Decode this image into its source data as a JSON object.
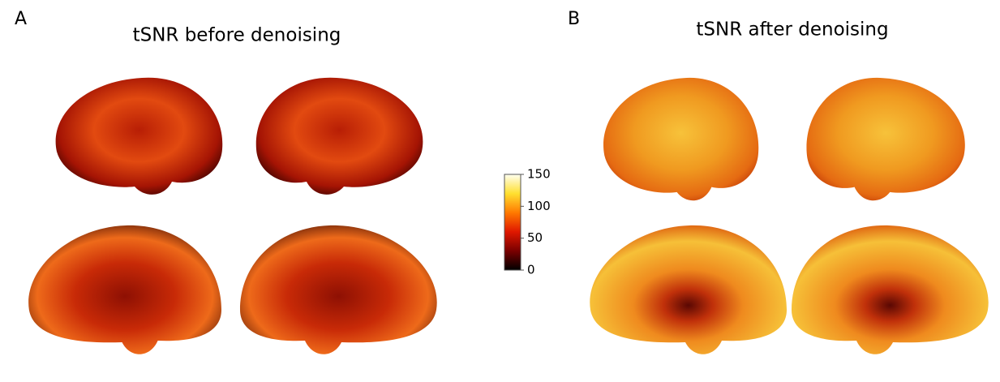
{
  "panels": [
    {
      "label": "A",
      "title": "tSNR before denoising"
    },
    {
      "label": "B",
      "title": "tSNR after denoising"
    }
  ],
  "colorbar": {
    "lim": [
      0,
      150
    ],
    "ticks": [
      0,
      50,
      100,
      150
    ]
  }
}
